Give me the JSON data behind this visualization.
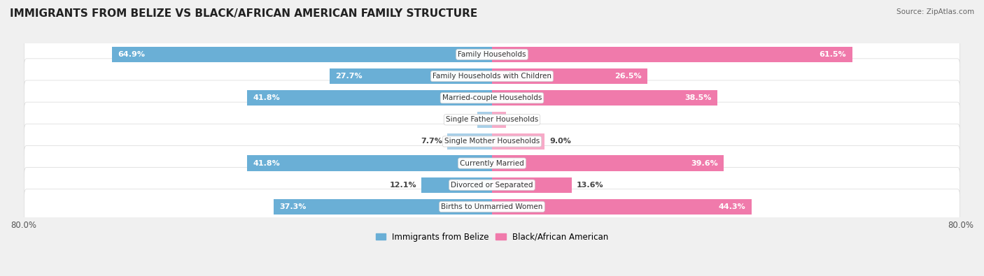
{
  "title": "IMMIGRANTS FROM BELIZE VS BLACK/AFRICAN AMERICAN FAMILY STRUCTURE",
  "source": "Source: ZipAtlas.com",
  "categories": [
    "Family Households",
    "Family Households with Children",
    "Married-couple Households",
    "Single Father Households",
    "Single Mother Households",
    "Currently Married",
    "Divorced or Separated",
    "Births to Unmarried Women"
  ],
  "belize_values": [
    64.9,
    27.7,
    41.8,
    2.5,
    7.7,
    41.8,
    12.1,
    37.3
  ],
  "black_values": [
    61.5,
    26.5,
    38.5,
    2.4,
    9.0,
    39.6,
    13.6,
    44.3
  ],
  "belize_color": "#6aafd6",
  "black_color": "#f07aab",
  "belize_color_light": "#a8cfe8",
  "black_color_light": "#f7aac8",
  "axis_max": 80.0,
  "bg_color": "#f0f0f0",
  "row_bg": "#f5f5f5",
  "row_border": "#e0e0e0",
  "label_font_size": 8.0,
  "title_font_size": 11,
  "legend_labels": [
    "Immigrants from Belize",
    "Black/African American"
  ]
}
